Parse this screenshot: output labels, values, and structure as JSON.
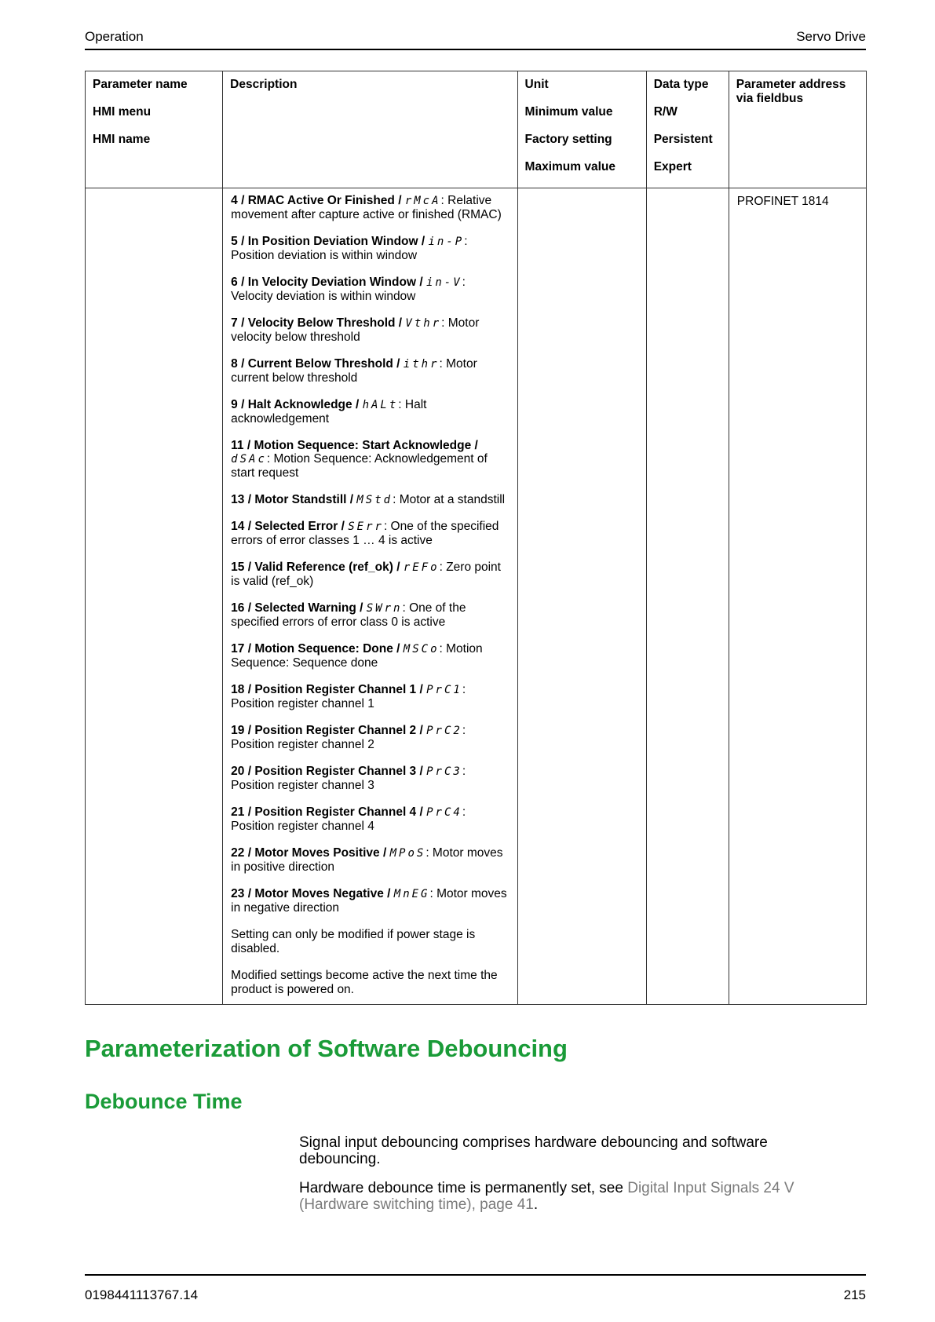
{
  "header": {
    "left": "Operation",
    "right": "Servo Drive"
  },
  "table": {
    "headers": {
      "col1": [
        "Parameter name",
        "HMI menu",
        "HMI name"
      ],
      "col2": [
        "Description"
      ],
      "col3": [
        "Unit",
        "Minimum value",
        "Factory setting",
        "Maximum value"
      ],
      "col4": [
        "Data type",
        "R/W",
        "Persistent",
        "Expert"
      ],
      "col5": [
        "Parameter address via fieldbus"
      ]
    },
    "entries": [
      {
        "bold": "4 / RMAC Active Or Finished / ",
        "hmi": "rMcA",
        "text": ": Relative movement after capture active or finished (RMAC)"
      },
      {
        "bold": "5 / In Position Deviation Window / ",
        "hmi": "in-P",
        "text": ": Position deviation is within window"
      },
      {
        "bold": "6 / In Velocity Deviation Window / ",
        "hmi": "in-V",
        "text": ": Velocity deviation is within window"
      },
      {
        "bold": "7 / Velocity Below Threshold / ",
        "hmi": "Vthr",
        "text": ": Motor velocity below threshold"
      },
      {
        "bold": "8 / Current Below Threshold / ",
        "hmi": "ithr",
        "text": ": Motor current below threshold"
      },
      {
        "bold": "9 / Halt Acknowledge / ",
        "hmi": "hALt",
        "text": ": Halt acknowledgement"
      },
      {
        "bold": "11 / Motion Sequence: Start Acknowledge / ",
        "hmi": "dSAc",
        "text": ": Motion Sequence: Acknowledgement of start request"
      },
      {
        "bold": "13 / Motor Standstill / ",
        "hmi": "MStd",
        "text": ": Motor at a standstill"
      },
      {
        "bold": "14 / Selected Error / ",
        "hmi": "SErr",
        "text": ": One of the specified errors of error classes 1 … 4 is active"
      },
      {
        "bold": "15 / Valid Reference (ref_ok) / ",
        "hmi": "rEFo",
        "text": ": Zero point is valid (ref_ok)"
      },
      {
        "bold": "16 / Selected Warning / ",
        "hmi": "SWrn",
        "text": ": One of the specified errors of error class 0 is active"
      },
      {
        "bold": "17 / Motion Sequence: Done / ",
        "hmi": "MSCo",
        "text": ": Motion Sequence: Sequence done"
      },
      {
        "bold": "18 / Position Register Channel 1 / ",
        "hmi": "PrC1",
        "text": ": Position register channel 1"
      },
      {
        "bold": "19 / Position Register Channel 2 / ",
        "hmi": "PrC2",
        "text": ": Position register channel 2"
      },
      {
        "bold": "20 / Position Register Channel 3 / ",
        "hmi": "PrC3",
        "text": ": Position register channel 3"
      },
      {
        "bold": "21 / Position Register Channel 4 / ",
        "hmi": "PrC4",
        "text": ": Position register channel 4"
      },
      {
        "bold": "22 / Motor Moves Positive / ",
        "hmi": "MPoS",
        "text": ": Motor moves in positive direction"
      },
      {
        "bold": "23 / Motor Moves Negative / ",
        "hmi": "MnEG",
        "text": ": Motor moves in negative direction"
      }
    ],
    "notes": [
      "Setting can only be modified if power stage is disabled.",
      "Modified settings become active the next time the product is powered on."
    ],
    "address": "PROFINET 1814"
  },
  "section_title": "Parameterization of Software Debouncing",
  "subsection_title": "Debounce Time",
  "body": {
    "p1": "Signal input debouncing comprises hardware debouncing and software debouncing.",
    "p2_before": "Hardware debounce time is permanently set, see ",
    "p2_link": "Digital Input Signals 24 V (Hardware switching time), page 41",
    "p2_after": "."
  },
  "footer": {
    "left": "0198441113767.14",
    "right": "215"
  }
}
